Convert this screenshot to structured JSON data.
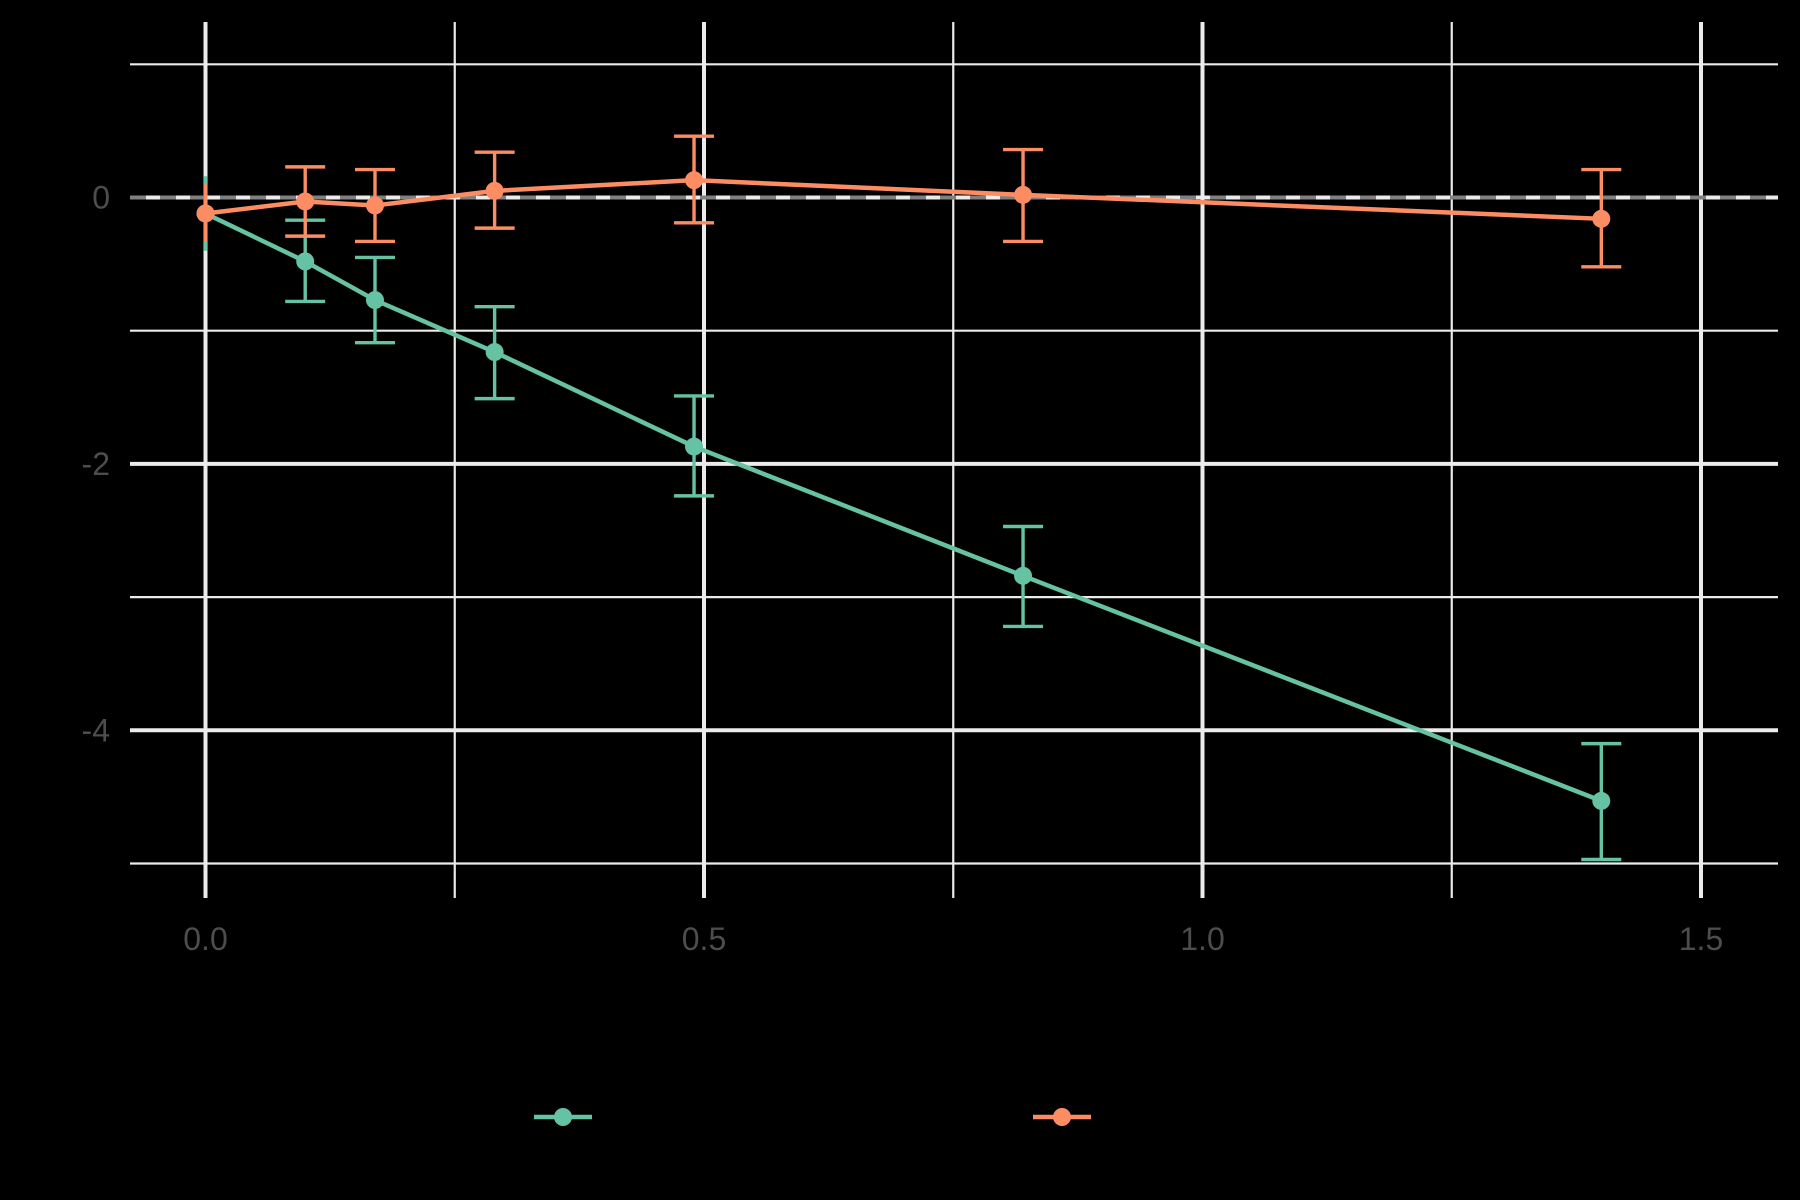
{
  "chart_data": {
    "type": "line",
    "title": "",
    "xlabel": "",
    "ylabel": "",
    "xlim": [
      -0.075,
      1.575
    ],
    "ylim": [
      -5.3,
      1.2
    ],
    "x_ticks": [
      0.0,
      0.5,
      1.0,
      1.5
    ],
    "x_tick_labels": [
      "0.0",
      "0.5",
      "1.0",
      "1.5"
    ],
    "x_minor_ticks": [
      0.25,
      0.75,
      1.25
    ],
    "y_ticks": [
      0,
      -2,
      -4
    ],
    "y_tick_labels": [
      "0",
      "-2",
      "-4"
    ],
    "y_minor_ticks": [
      1,
      -1,
      -3,
      -5
    ],
    "grid": true,
    "reference_line": {
      "y": 0,
      "style": "dashed",
      "color": "#808080"
    },
    "legend_position": "bottom",
    "background": "#000000",
    "series": [
      {
        "name": "",
        "color": "#66c2a5",
        "x": [
          0.0,
          0.1,
          0.17,
          0.29,
          0.49,
          0.82,
          1.4
        ],
        "y": [
          -0.12,
          -0.48,
          -0.77,
          -1.16,
          -1.87,
          -2.84,
          -4.53
        ],
        "err_low": [
          -0.4,
          -0.78,
          -1.09,
          -1.51,
          -2.24,
          -3.22,
          -4.97
        ],
        "err_high": [
          0.16,
          -0.17,
          -0.45,
          -0.82,
          -1.49,
          -2.47,
          -4.1
        ]
      },
      {
        "name": "",
        "color": "#fc8d62",
        "x": [
          0.0,
          0.1,
          0.17,
          0.29,
          0.49,
          0.82,
          1.4
        ],
        "y": [
          -0.12,
          -0.03,
          -0.06,
          0.05,
          0.13,
          0.02,
          -0.16
        ],
        "err_low": [
          -0.33,
          -0.29,
          -0.33,
          -0.23,
          -0.19,
          -0.33,
          -0.52
        ],
        "err_high": [
          0.1,
          0.23,
          0.21,
          0.34,
          0.46,
          0.36,
          0.21
        ]
      }
    ]
  }
}
